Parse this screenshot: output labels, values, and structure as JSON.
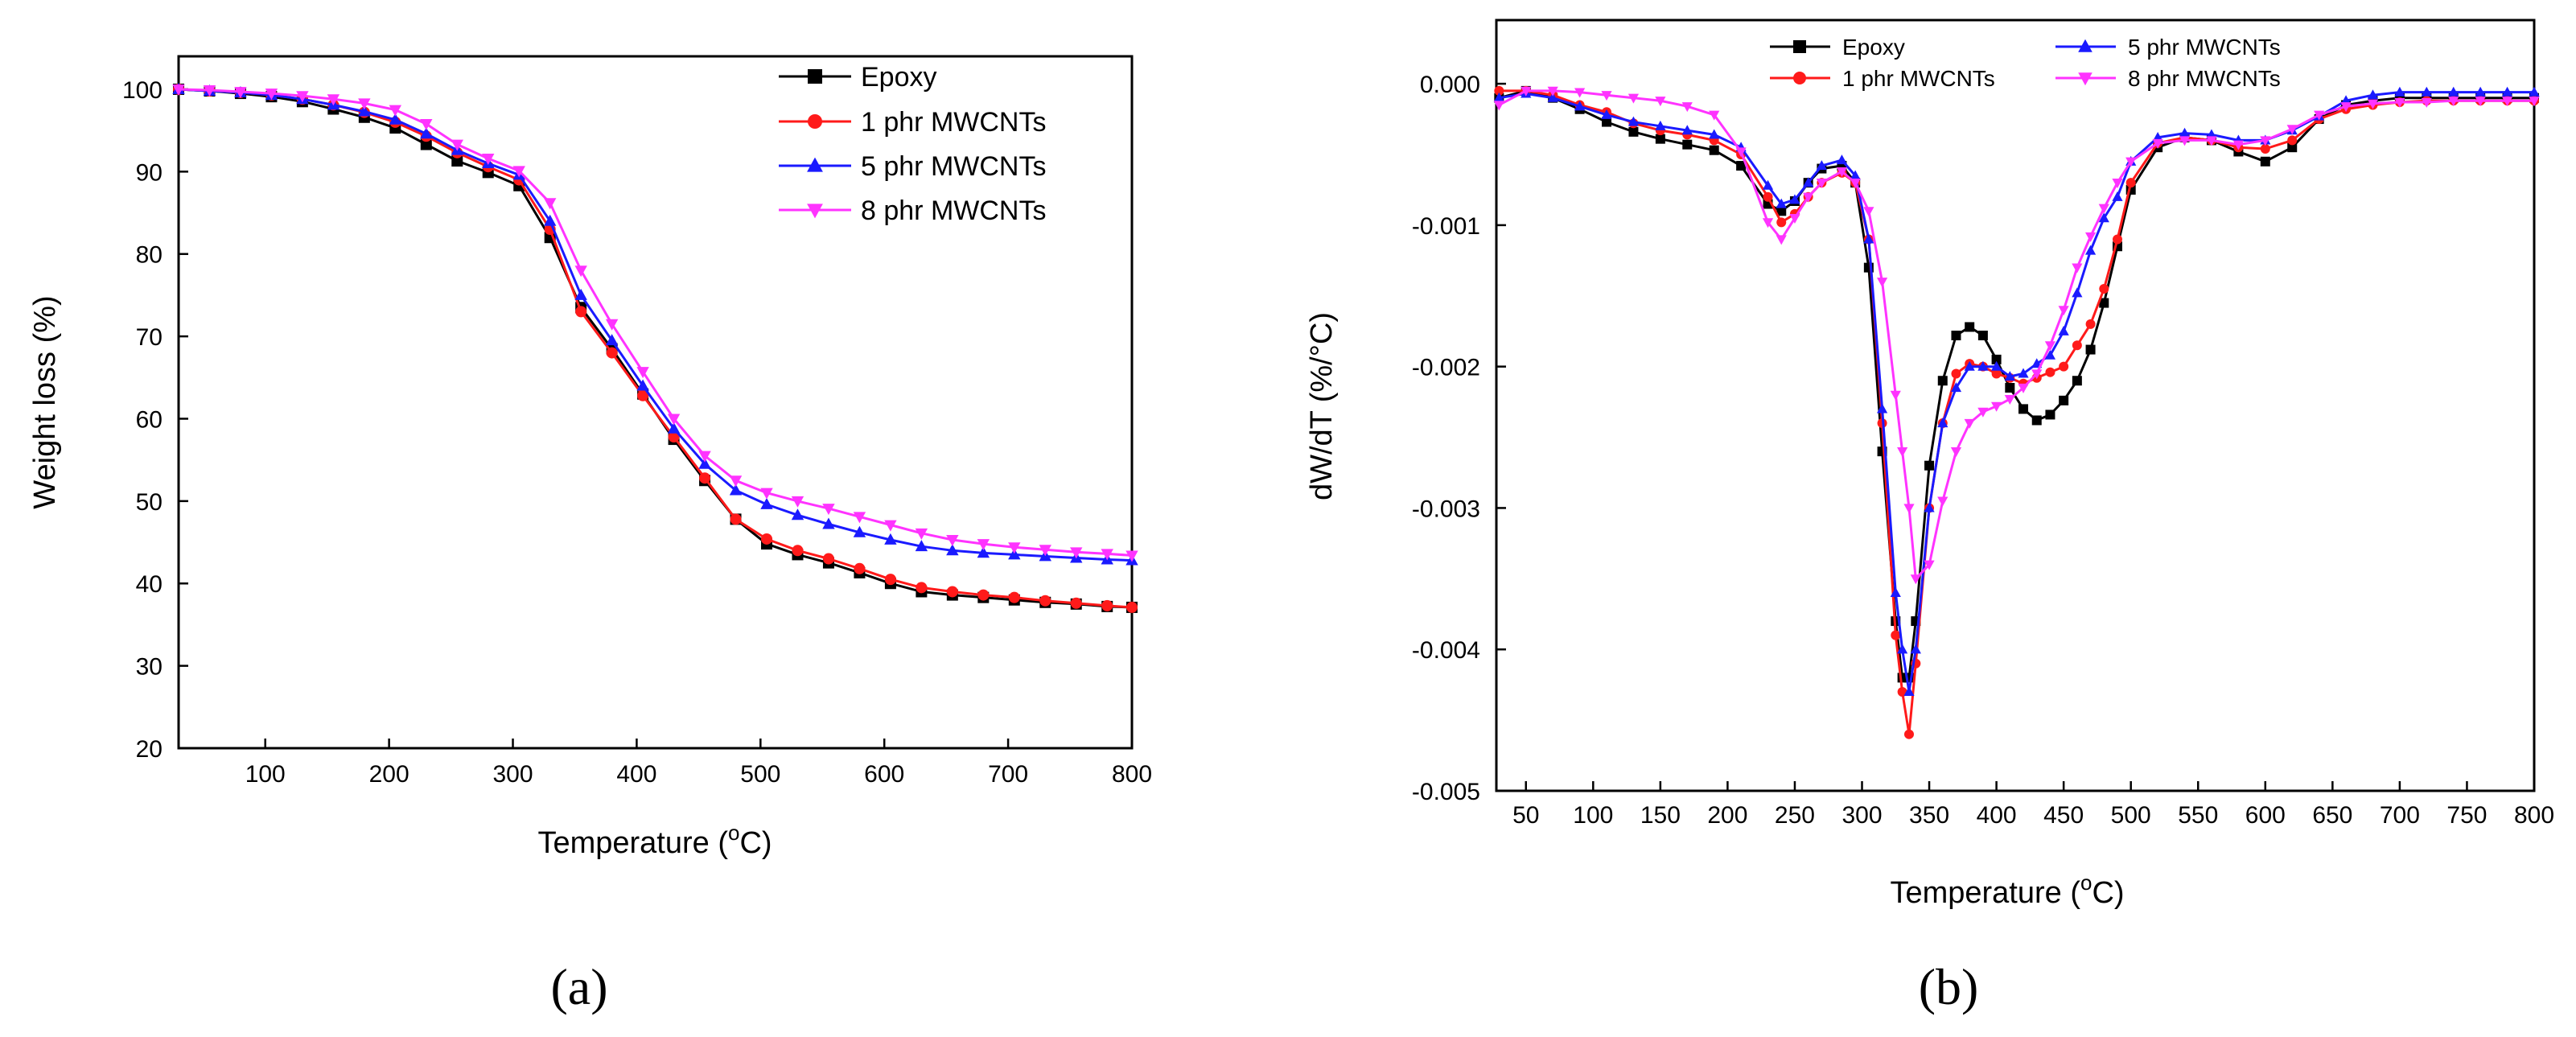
{
  "colors": {
    "epoxy": "#000000",
    "phr1": "#ff1a1a",
    "phr5": "#1a1aff",
    "phr8": "#ff33ff"
  },
  "markers": {
    "epoxy": "square",
    "phr1": "circle",
    "phr5": "triangle-up",
    "phr8": "triangle-down"
  },
  "chart_data": [
    {
      "id": "a",
      "panel_label": "(a)",
      "type": "line",
      "title": "",
      "xlabel": "Temperature (°C)",
      "xlabel_main": "Temperature (",
      "xlabel_sup": "o",
      "xlabel_tail": "C)",
      "ylabel": "Weight loss (%)",
      "xlim": [
        30,
        800
      ],
      "ylim": [
        20,
        104
      ],
      "xticks": [
        100,
        200,
        300,
        400,
        500,
        600,
        700,
        800
      ],
      "yticks": [
        20,
        30,
        40,
        50,
        60,
        70,
        80,
        90,
        100
      ],
      "legend_position": "top-right",
      "series": [
        {
          "name": "Epoxy",
          "color_key": "epoxy",
          "x": [
            30,
            55,
            80,
            105,
            130,
            155,
            180,
            205,
            230,
            255,
            280,
            305,
            330,
            355,
            380,
            405,
            430,
            455,
            480,
            505,
            530,
            555,
            580,
            605,
            630,
            655,
            680,
            705,
            730,
            755,
            780,
            800
          ],
          "y": [
            100,
            99.8,
            99.5,
            99.1,
            98.5,
            97.6,
            96.6,
            95.3,
            93.3,
            91.3,
            89.9,
            88.3,
            82.0,
            73.5,
            68.5,
            63.0,
            57.5,
            52.5,
            47.8,
            44.8,
            43.5,
            42.5,
            41.3,
            40.0,
            39.0,
            38.6,
            38.3,
            38.0,
            37.7,
            37.5,
            37.2,
            37.1
          ]
        },
        {
          "name": "1 phr MWCNTs",
          "color_key": "phr1",
          "x": [
            30,
            55,
            80,
            105,
            130,
            155,
            180,
            205,
            230,
            255,
            280,
            305,
            330,
            355,
            380,
            405,
            430,
            455,
            480,
            505,
            530,
            555,
            580,
            605,
            630,
            655,
            680,
            705,
            730,
            755,
            780,
            800
          ],
          "y": [
            100,
            99.8,
            99.6,
            99.3,
            98.8,
            98.1,
            97.2,
            96.0,
            94.3,
            92.3,
            90.6,
            89.0,
            83.0,
            73.0,
            68.0,
            62.8,
            57.8,
            52.8,
            47.8,
            45.4,
            44.0,
            43.0,
            41.8,
            40.5,
            39.5,
            39.0,
            38.6,
            38.3,
            37.9,
            37.6,
            37.3,
            37.1
          ]
        },
        {
          "name": "5 phr MWCNTs",
          "color_key": "phr5",
          "x": [
            30,
            55,
            80,
            105,
            130,
            155,
            180,
            205,
            230,
            255,
            280,
            305,
            330,
            355,
            380,
            405,
            430,
            455,
            480,
            505,
            530,
            555,
            580,
            605,
            630,
            655,
            680,
            705,
            730,
            755,
            780,
            800
          ],
          "y": [
            100,
            99.8,
            99.6,
            99.3,
            98.8,
            98.1,
            97.3,
            96.3,
            94.6,
            92.6,
            91.0,
            89.6,
            84.0,
            75.0,
            69.5,
            64.0,
            58.8,
            54.5,
            51.3,
            49.6,
            48.3,
            47.2,
            46.2,
            45.3,
            44.5,
            44.0,
            43.7,
            43.5,
            43.3,
            43.1,
            42.9,
            42.8
          ]
        },
        {
          "name": "8 phr MWCNTs",
          "color_key": "phr8",
          "x": [
            30,
            55,
            80,
            105,
            130,
            155,
            180,
            205,
            230,
            255,
            280,
            305,
            330,
            355,
            380,
            405,
            430,
            455,
            480,
            505,
            530,
            555,
            580,
            605,
            630,
            655,
            680,
            705,
            730,
            755,
            780,
            800
          ],
          "y": [
            100,
            99.9,
            99.7,
            99.5,
            99.2,
            98.8,
            98.3,
            97.5,
            95.8,
            93.3,
            91.6,
            90.1,
            86.2,
            78.0,
            71.5,
            65.7,
            60.0,
            55.5,
            52.5,
            51.0,
            50.0,
            49.1,
            48.1,
            47.1,
            46.1,
            45.3,
            44.8,
            44.4,
            44.1,
            43.8,
            43.6,
            43.4
          ]
        }
      ]
    },
    {
      "id": "b",
      "panel_label": "(b)",
      "type": "line",
      "title": "",
      "xlabel": "Temperature (°C)",
      "xlabel_main": "Temperature (",
      "xlabel_sup": "o",
      "xlabel_tail": "C)",
      "ylabel": "dW/dT (%/°C)",
      "xlim": [
        28,
        800
      ],
      "ylim": [
        -0.005,
        0.00045
      ],
      "xticks": [
        50,
        100,
        150,
        200,
        250,
        300,
        350,
        400,
        450,
        500,
        550,
        600,
        650,
        700,
        750,
        800
      ],
      "yticks": [
        -0.005,
        -0.004,
        -0.003,
        -0.002,
        -0.001,
        0.0
      ],
      "ytick_labels": [
        "-0.005",
        "-0.004",
        "-0.003",
        "-0.002",
        "-0.001",
        "0.000"
      ],
      "legend_position": "top",
      "series": [
        {
          "name": "Epoxy",
          "color_key": "epoxy",
          "x": [
            30,
            50,
            70,
            90,
            110,
            130,
            150,
            170,
            190,
            210,
            230,
            240,
            250,
            260,
            270,
            285,
            295,
            305,
            315,
            325,
            330,
            335,
            340,
            350,
            360,
            370,
            380,
            390,
            400,
            410,
            420,
            430,
            440,
            450,
            460,
            470,
            480,
            490,
            500,
            520,
            540,
            560,
            580,
            600,
            620,
            640,
            660,
            680,
            700,
            720,
            740,
            760,
            780,
            800
          ],
          "y": [
            -0.0001,
            -5e-05,
            -0.0001,
            -0.00018,
            -0.00027,
            -0.00034,
            -0.00039,
            -0.00043,
            -0.00047,
            -0.00058,
            -0.00085,
            -0.0009,
            -0.00083,
            -0.0007,
            -0.0006,
            -0.00058,
            -0.0007,
            -0.0013,
            -0.0026,
            -0.0038,
            -0.0042,
            -0.0042,
            -0.0038,
            -0.0027,
            -0.0021,
            -0.00178,
            -0.00172,
            -0.00178,
            -0.00195,
            -0.00215,
            -0.0023,
            -0.00238,
            -0.00234,
            -0.00224,
            -0.0021,
            -0.00188,
            -0.00155,
            -0.00115,
            -0.00075,
            -0.00045,
            -0.00038,
            -0.0004,
            -0.00048,
            -0.00055,
            -0.00045,
            -0.00025,
            -0.00015,
            -0.00012,
            -0.0001,
            -0.0001,
            -0.0001,
            -0.0001,
            -0.0001,
            -0.0001
          ]
        },
        {
          "name": "1 phr MWCNTs",
          "color_key": "phr1",
          "x": [
            30,
            50,
            70,
            90,
            110,
            130,
            150,
            170,
            190,
            210,
            230,
            240,
            250,
            260,
            270,
            285,
            295,
            305,
            315,
            325,
            330,
            335,
            340,
            350,
            360,
            370,
            380,
            390,
            400,
            410,
            420,
            430,
            440,
            450,
            460,
            470,
            480,
            490,
            500,
            520,
            540,
            560,
            580,
            600,
            620,
            640,
            660,
            680,
            700,
            720,
            740,
            760,
            780,
            800
          ],
          "y": [
            -5e-05,
            -5e-05,
            -8e-05,
            -0.00015,
            -0.0002,
            -0.00028,
            -0.00033,
            -0.00036,
            -0.0004,
            -0.0005,
            -0.0008,
            -0.00098,
            -0.00092,
            -0.0008,
            -0.0007,
            -0.00063,
            -0.0007,
            -0.0011,
            -0.0024,
            -0.0039,
            -0.0043,
            -0.0046,
            -0.0041,
            -0.003,
            -0.0024,
            -0.00205,
            -0.00198,
            -0.002,
            -0.00205,
            -0.00208,
            -0.00212,
            -0.00208,
            -0.00204,
            -0.002,
            -0.00185,
            -0.0017,
            -0.00145,
            -0.0011,
            -0.0007,
            -0.00042,
            -0.00038,
            -0.0004,
            -0.00045,
            -0.00046,
            -0.0004,
            -0.00025,
            -0.00018,
            -0.00015,
            -0.00013,
            -0.00012,
            -0.00012,
            -0.00012,
            -0.00012,
            -0.00012
          ]
        },
        {
          "name": "5 phr MWCNTs",
          "color_key": "phr5",
          "x": [
            30,
            50,
            70,
            90,
            110,
            130,
            150,
            170,
            190,
            210,
            230,
            240,
            250,
            260,
            270,
            285,
            295,
            305,
            315,
            325,
            330,
            335,
            340,
            350,
            360,
            370,
            380,
            390,
            400,
            410,
            420,
            430,
            440,
            450,
            460,
            470,
            480,
            490,
            500,
            520,
            540,
            560,
            580,
            600,
            620,
            640,
            660,
            680,
            700,
            720,
            740,
            760,
            780,
            800
          ],
          "y": [
            -0.0001,
            -7e-05,
            -0.0001,
            -0.00016,
            -0.00022,
            -0.00027,
            -0.0003,
            -0.00033,
            -0.00036,
            -0.00045,
            -0.00072,
            -0.00085,
            -0.00082,
            -0.0007,
            -0.00058,
            -0.00054,
            -0.00065,
            -0.0011,
            -0.0023,
            -0.0036,
            -0.004,
            -0.0043,
            -0.004,
            -0.003,
            -0.0024,
            -0.00215,
            -0.002,
            -0.002,
            -0.002,
            -0.00207,
            -0.00205,
            -0.00198,
            -0.00192,
            -0.00175,
            -0.00148,
            -0.00118,
            -0.00095,
            -0.0008,
            -0.00055,
            -0.00038,
            -0.00035,
            -0.00036,
            -0.0004,
            -0.0004,
            -0.00033,
            -0.00023,
            -0.00012,
            -8e-05,
            -6e-05,
            -6e-05,
            -6e-05,
            -6e-05,
            -6e-05,
            -6e-05
          ]
        },
        {
          "name": "8 phr MWCNTs",
          "color_key": "phr8",
          "x": [
            30,
            50,
            70,
            90,
            110,
            130,
            150,
            170,
            190,
            210,
            230,
            240,
            250,
            260,
            270,
            285,
            295,
            305,
            315,
            325,
            330,
            335,
            340,
            350,
            360,
            370,
            380,
            390,
            400,
            410,
            420,
            430,
            440,
            450,
            460,
            470,
            480,
            490,
            500,
            520,
            540,
            560,
            580,
            600,
            620,
            640,
            660,
            680,
            700,
            720,
            740,
            760,
            780,
            800
          ],
          "y": [
            -0.00015,
            -5e-05,
            -5e-05,
            -6e-05,
            -8e-05,
            -0.0001,
            -0.00012,
            -0.00016,
            -0.00022,
            -0.00048,
            -0.00098,
            -0.0011,
            -0.00095,
            -0.0008,
            -0.0007,
            -0.00062,
            -0.0007,
            -0.0009,
            -0.0014,
            -0.0022,
            -0.0026,
            -0.003,
            -0.0035,
            -0.0034,
            -0.00295,
            -0.0026,
            -0.0024,
            -0.00232,
            -0.00228,
            -0.00223,
            -0.00215,
            -0.00205,
            -0.00185,
            -0.0016,
            -0.0013,
            -0.00108,
            -0.00088,
            -0.0007,
            -0.00055,
            -0.00042,
            -0.0004,
            -0.0004,
            -0.00043,
            -0.0004,
            -0.00032,
            -0.00022,
            -0.00016,
            -0.00014,
            -0.00013,
            -0.00013,
            -0.00012,
            -0.00012,
            -0.00012,
            -0.00012
          ]
        }
      ]
    }
  ]
}
